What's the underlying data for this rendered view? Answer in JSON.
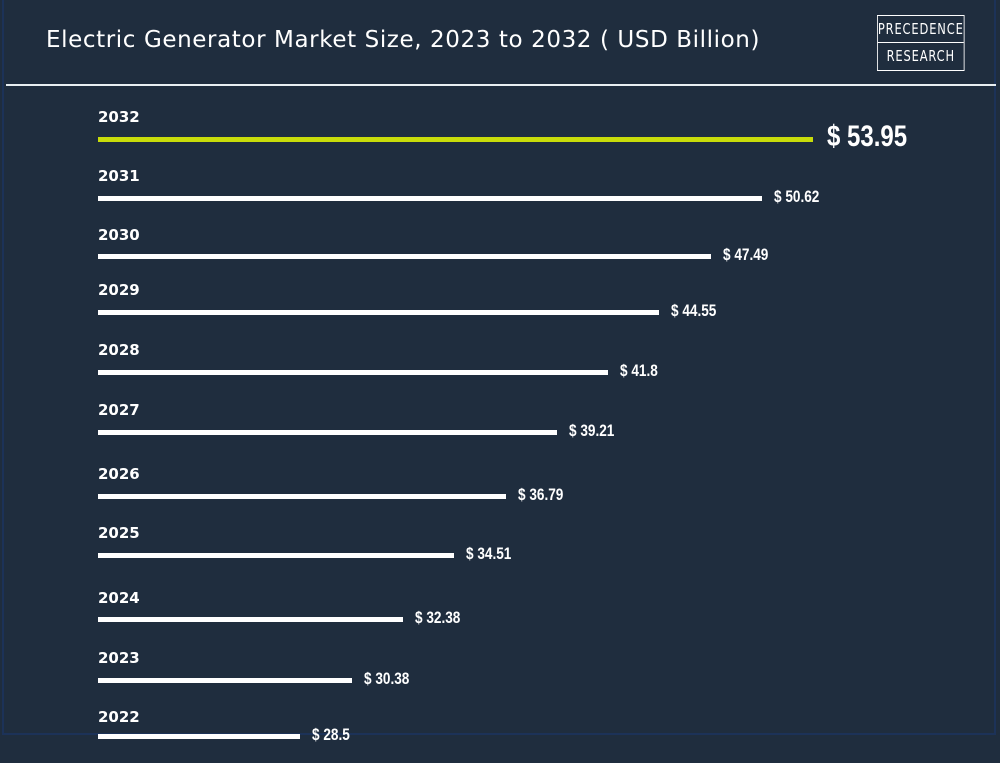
{
  "title": "Electric Generator Market Size, 2023 to 2032 ( USD Billion)",
  "logo": {
    "line1": "PRECEDENCE",
    "line2": "RESEARCH"
  },
  "colors": {
    "background": "#1f2d3e",
    "bar": "#ffffff",
    "highlight": "#c8dc0a"
  },
  "chart_data": {
    "type": "bar",
    "orientation": "horizontal",
    "title": "Electric Generator Market Size, 2023 to 2032 ( USD Billion)",
    "categories": [
      "2032",
      "2031",
      "2030",
      "2029",
      "2028",
      "2027",
      "2026",
      "2025",
      "2024",
      "2023",
      "2022"
    ],
    "values": [
      53.95,
      50.62,
      47.49,
      44.55,
      41.8,
      39.21,
      36.79,
      34.51,
      32.38,
      30.38,
      28.5
    ],
    "labels": [
      "$ 53.95",
      "$ 50.62",
      "$ 47.49",
      "$ 44.55",
      "$ 41.8",
      "$ 39.21",
      "$ 36.79",
      "$ 34.51",
      "$ 32.38",
      "$ 30.38",
      "$ 28.5"
    ],
    "highlight": "2032",
    "grid": false
  }
}
